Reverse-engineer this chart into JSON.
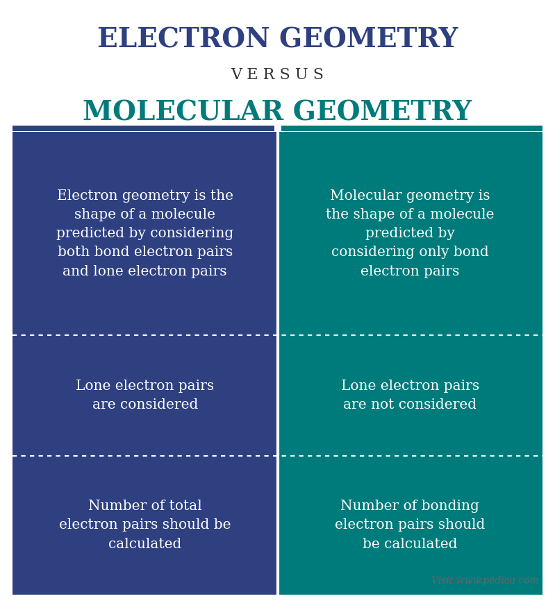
{
  "title1": "ELECTRON GEOMETRY",
  "versus": "V E R S U S",
  "title2": "MOLECULAR GEOMETRY",
  "title1_color": "#2e4080",
  "versus_color": "#333333",
  "title2_color": "#007b7b",
  "left_bg": "#2e4080",
  "right_bg": "#007b7b",
  "text_color": "#ffffff",
  "dash_color": "#ffffff",
  "bg_color": "#ffffff",
  "left_texts": [
    "Electron geometry is the\nshape of a molecule\npredicted by considering\nboth bond electron pairs\nand lone electron pairs",
    "Lone electron pairs\nare considered",
    "Number of total\nelectron pairs should be\ncalculated"
  ],
  "right_texts": [
    "Molecular geometry is\nthe shape of a molecule\npredicted by\nconsidering only bond\nelectron pairs",
    "Lone electron pairs\nare not considered",
    "Number of bonding\nelectron pairs should\nbe calculated"
  ],
  "watermark": "Visit www.pediaa.com",
  "title1_fontsize": 28,
  "versus_fontsize": 16,
  "title2_fontsize": 28,
  "cell_fontsize": 14.5
}
